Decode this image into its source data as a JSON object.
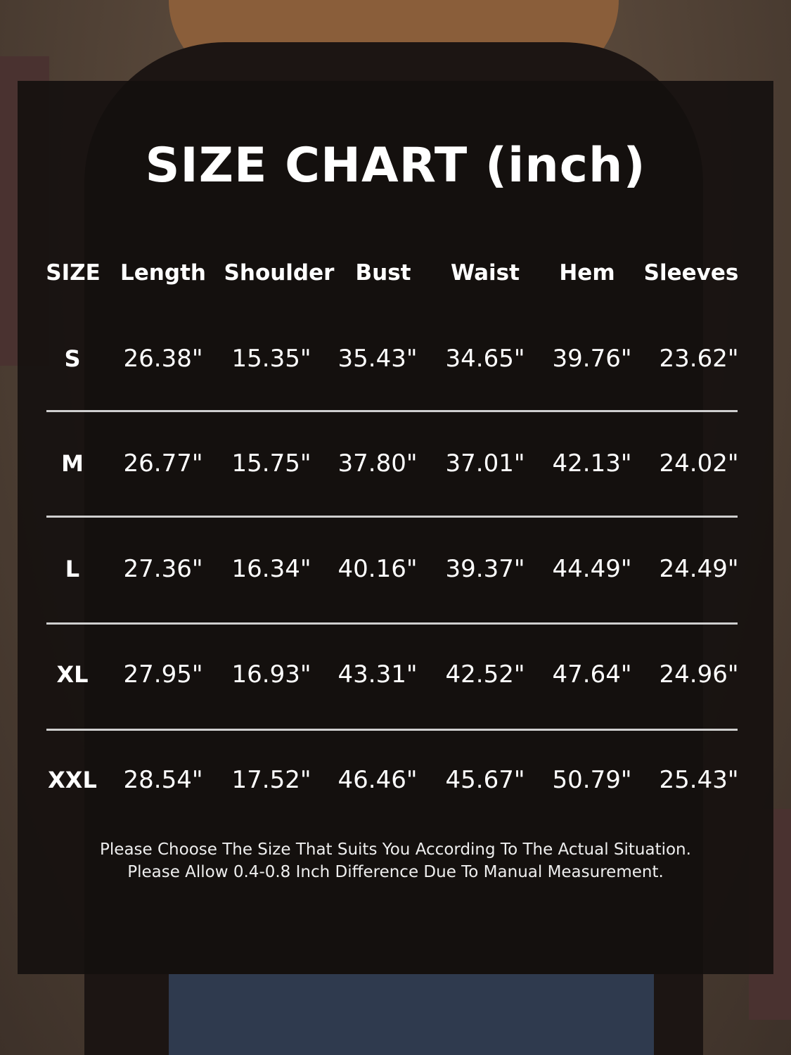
{
  "title": "SIZE CHART (inch)",
  "table": {
    "headers": [
      "SIZE",
      "Length",
      "Shoulder",
      "Bust",
      "Waist",
      "Hem",
      "Sleeves"
    ],
    "rows": [
      [
        "S",
        "26.38\"",
        "15.35\"",
        "35.43\"",
        "34.65\"",
        "39.76\"",
        "23.62\""
      ],
      [
        "M",
        "26.77\"",
        "15.75\"",
        "37.80\"",
        "37.01\"",
        "42.13\"",
        "24.02\""
      ],
      [
        "L",
        "27.36\"",
        "16.34\"",
        "40.16\"",
        "39.37\"",
        "44.49\"",
        "24.49\""
      ],
      [
        "XL",
        "27.95\"",
        "16.93\"",
        "43.31\"",
        "42.52\"",
        "47.64\"",
        "24.96\""
      ],
      [
        "XXL",
        "28.54\"",
        "17.52\"",
        "46.46\"",
        "45.67\"",
        "50.79\"",
        "25.43\""
      ]
    ]
  },
  "notes": [
    "Please Choose The Size That Suits You According To The Actual Situation.",
    "Please Allow 0.4-0.8 Inch Difference Due To Manual Measurement."
  ]
}
